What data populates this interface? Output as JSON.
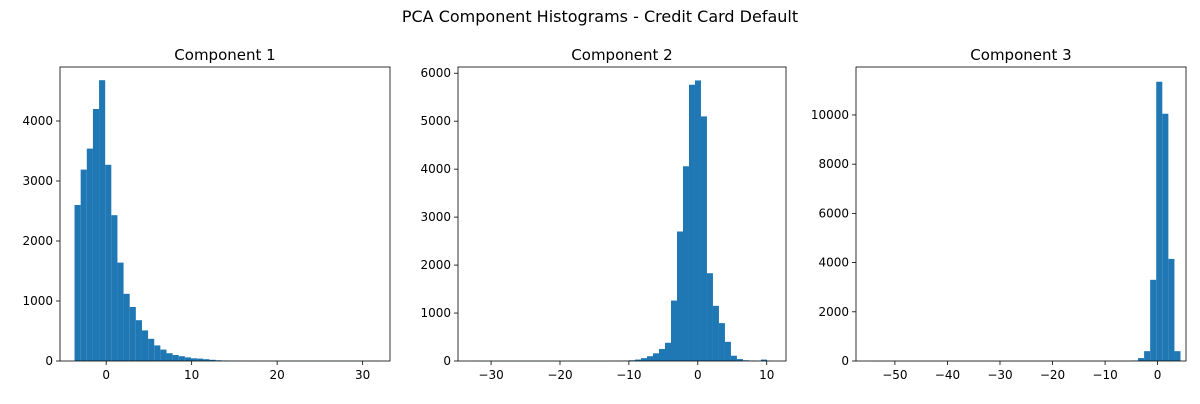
{
  "figure": {
    "suptitle": "PCA Component Histograms - Credit Card Default"
  },
  "style": {
    "bar_color": "#1f77b4",
    "axis_color": "#000000",
    "background": "#ffffff"
  },
  "chart_data": [
    {
      "type": "bar",
      "title": "Component 1",
      "xlabel": "",
      "ylabel": "",
      "xlim": [
        -5.4,
        33.2
      ],
      "ylim": [
        0,
        4900
      ],
      "xticks": [
        0,
        10,
        20,
        30
      ],
      "yticks": [
        0,
        1000,
        2000,
        3000,
        4000
      ],
      "grid": false,
      "bin_start": -3.7,
      "bin_width": 0.717,
      "values": [
        2600,
        3190,
        3540,
        4200,
        4680,
        3270,
        2430,
        1640,
        1120,
        900,
        680,
        510,
        370,
        260,
        190,
        130,
        100,
        80,
        60,
        45,
        40,
        30,
        20,
        12,
        8,
        5,
        4,
        3,
        3,
        2,
        2,
        2,
        1,
        1,
        1,
        1,
        1,
        1,
        1,
        1,
        1,
        1,
        1,
        1,
        1,
        1,
        1,
        1,
        1,
        1
      ]
    },
    {
      "type": "bar",
      "title": "Component 2",
      "xlabel": "",
      "ylabel": "",
      "xlim": [
        -34.8,
        12.8
      ],
      "ylim": [
        0,
        6130
      ],
      "xticks": [
        -30,
        -20,
        -10,
        0,
        10
      ],
      "yticks": [
        0,
        1000,
        2000,
        3000,
        4000,
        5000,
        6000
      ],
      "grid": false,
      "bin_start": -32.6,
      "bin_width": 0.87,
      "values": [
        1,
        1,
        1,
        1,
        1,
        1,
        1,
        1,
        1,
        1,
        1,
        1,
        1,
        1,
        1,
        1,
        1,
        1,
        1,
        1,
        1,
        1,
        1,
        2,
        3,
        8,
        15,
        30,
        60,
        100,
        160,
        250,
        380,
        1260,
        2700,
        4060,
        5760,
        5850,
        5100,
        1830,
        1150,
        790,
        400,
        110,
        40,
        15,
        8,
        4,
        30,
        3
      ]
    },
    {
      "type": "bar",
      "title": "Component 3",
      "xlabel": "",
      "ylabel": "",
      "xlim": [
        -57.4,
        5.4
      ],
      "ylim": [
        0,
        11950
      ],
      "xticks": [
        -50,
        -40,
        -30,
        -20,
        -10,
        0
      ],
      "yticks": [
        0,
        2000,
        4000,
        6000,
        8000,
        10000
      ],
      "grid": false,
      "bin_start": -54.55,
      "bin_width": 1.155,
      "values": [
        2,
        1,
        1,
        1,
        1,
        1,
        1,
        1,
        1,
        1,
        1,
        1,
        1,
        1,
        1,
        1,
        1,
        1,
        1,
        1,
        1,
        1,
        1,
        1,
        1,
        1,
        1,
        1,
        1,
        1,
        1,
        1,
        1,
        1,
        1,
        1,
        1,
        1,
        1,
        1,
        1,
        1,
        1,
        20,
        120,
        400,
        3300,
        11350,
        10050,
        4150,
        400
      ]
    }
  ]
}
